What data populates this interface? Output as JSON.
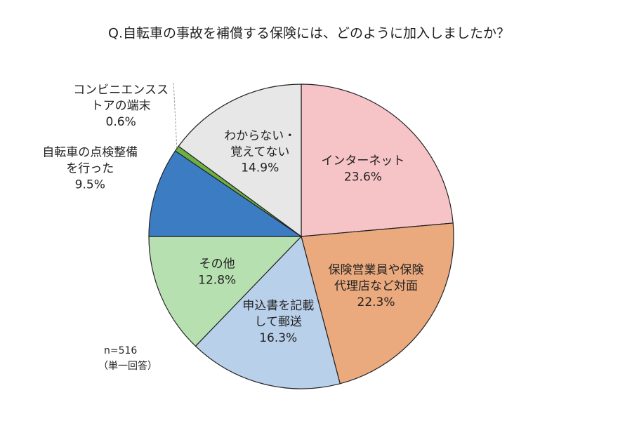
{
  "chart_data": {
    "type": "pie",
    "title": "Q.自転車の事故を補償する保険には、どのように加入しましたか？",
    "categories": [
      "インターネット",
      "保険営業員や保険\n代理店など対面",
      "申込書を記載\nして郵送",
      "その他",
      "自転車の点検整備\nを行った",
      "コンビニエンスス\nトアの端末",
      "わからない・\n覚えてない"
    ],
    "values": [
      23.6,
      22.3,
      16.3,
      12.8,
      9.5,
      0.6,
      14.9
    ],
    "value_labels": [
      "23.6%",
      "22.3%",
      "16.3%",
      "12.8%",
      "9.5%",
      "0.6%",
      "14.9%"
    ],
    "colors": [
      "#f6c4c7",
      "#eba97e",
      "#b9d0ea",
      "#b7e0b1",
      "#3c7cc3",
      "#6cb043",
      "#e7e7e7"
    ],
    "annotations": [
      "n=516",
      "（単一回答）"
    ]
  }
}
